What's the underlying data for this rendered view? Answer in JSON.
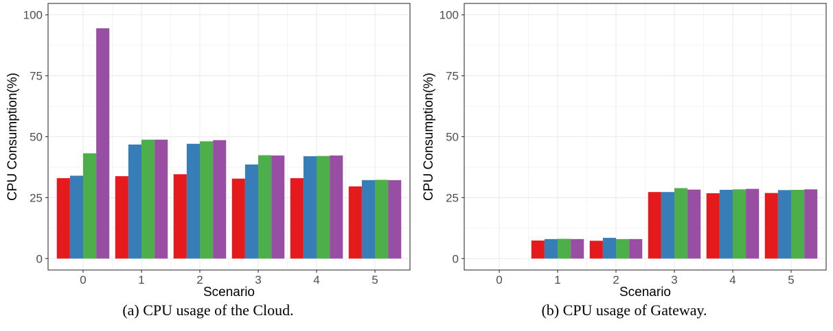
{
  "chart_data": [
    {
      "type": "bar",
      "caption": "(a) CPU usage of the Cloud.",
      "xlabel": "Scenario",
      "ylabel": "CPU Consumption(%)",
      "ylim": [
        0,
        100
      ],
      "yticks": [
        "0",
        "25",
        "50",
        "75",
        "100"
      ],
      "categories": [
        "0",
        "1",
        "2",
        "3",
        "4",
        "5"
      ],
      "grid": true,
      "legend": "none",
      "colors": [
        "#e41a1c",
        "#377eb8",
        "#4daf4a",
        "#984ea3"
      ],
      "series": [
        {
          "values": [
            33.0,
            33.8,
            34.6,
            32.8,
            33.0,
            29.6
          ]
        },
        {
          "values": [
            34.0,
            46.8,
            47.1,
            38.6,
            42.0,
            32.2
          ]
        },
        {
          "values": [
            43.2,
            48.8,
            48.1,
            42.4,
            42.1,
            32.3
          ]
        },
        {
          "values": [
            94.5,
            48.8,
            48.6,
            42.3,
            42.3,
            32.2
          ]
        }
      ]
    },
    {
      "type": "bar",
      "caption": "(b) CPU usage of Gateway.",
      "xlabel": "Scenario",
      "ylabel": "CPU Consumption(%)",
      "ylim": [
        0,
        100
      ],
      "yticks": [
        "0",
        "25",
        "50",
        "75",
        "100"
      ],
      "categories": [
        "0",
        "1",
        "2",
        "3",
        "4",
        "5"
      ],
      "grid": true,
      "legend": "none",
      "colors": [
        "#e41a1c",
        "#377eb8",
        "#4daf4a",
        "#984ea3"
      ],
      "series": [
        {
          "values": [
            0,
            7.4,
            7.3,
            27.3,
            26.8,
            26.9
          ]
        },
        {
          "values": [
            0,
            8.0,
            8.5,
            27.3,
            28.2,
            28.1
          ]
        },
        {
          "values": [
            0,
            8.1,
            8.0,
            28.9,
            28.4,
            28.2
          ]
        },
        {
          "values": [
            0,
            8.0,
            8.0,
            28.3,
            28.6,
            28.4
          ]
        }
      ]
    }
  ]
}
